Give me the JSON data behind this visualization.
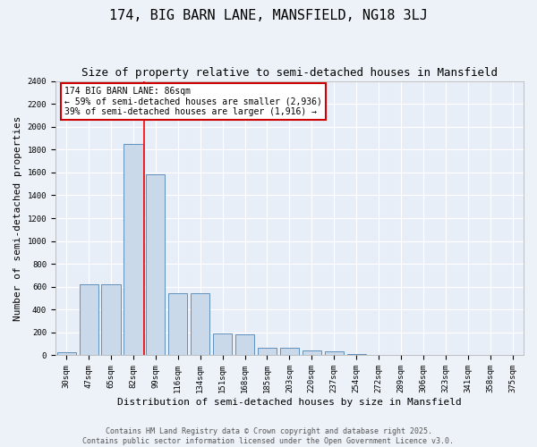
{
  "title1": "174, BIG BARN LANE, MANSFIELD, NG18 3LJ",
  "title2": "Size of property relative to semi-detached houses in Mansfield",
  "xlabel": "Distribution of semi-detached houses by size in Mansfield",
  "ylabel": "Number of semi-detached properties",
  "categories": [
    "30sqm",
    "47sqm",
    "65sqm",
    "82sqm",
    "99sqm",
    "116sqm",
    "134sqm",
    "151sqm",
    "168sqm",
    "185sqm",
    "203sqm",
    "220sqm",
    "237sqm",
    "254sqm",
    "272sqm",
    "289sqm",
    "306sqm",
    "323sqm",
    "341sqm",
    "358sqm",
    "375sqm"
  ],
  "values": [
    30,
    620,
    625,
    1850,
    1580,
    540,
    540,
    190,
    185,
    70,
    65,
    40,
    35,
    15,
    0,
    0,
    0,
    0,
    0,
    0,
    0
  ],
  "bar_color": "#c9d9ea",
  "bar_edge_color": "#6090bb",
  "red_line_index": 3,
  "annotation_text": "174 BIG BARN LANE: 86sqm\n← 59% of semi-detached houses are smaller (2,936)\n39% of semi-detached houses are larger (1,916) →",
  "annotation_box_facecolor": "#ffffff",
  "annotation_box_edgecolor": "#cc0000",
  "ylim": [
    0,
    2400
  ],
  "yticks": [
    0,
    200,
    400,
    600,
    800,
    1000,
    1200,
    1400,
    1600,
    1800,
    2000,
    2200,
    2400
  ],
  "background_color": "#e8eef8",
  "fig_facecolor": "#edf2f8",
  "footer": "Contains HM Land Registry data © Crown copyright and database right 2025.\nContains public sector information licensed under the Open Government Licence v3.0.",
  "title_fontsize": 11,
  "subtitle_fontsize": 9,
  "axis_label_fontsize": 8,
  "tick_fontsize": 6.5,
  "footer_fontsize": 6,
  "annotation_fontsize": 7
}
